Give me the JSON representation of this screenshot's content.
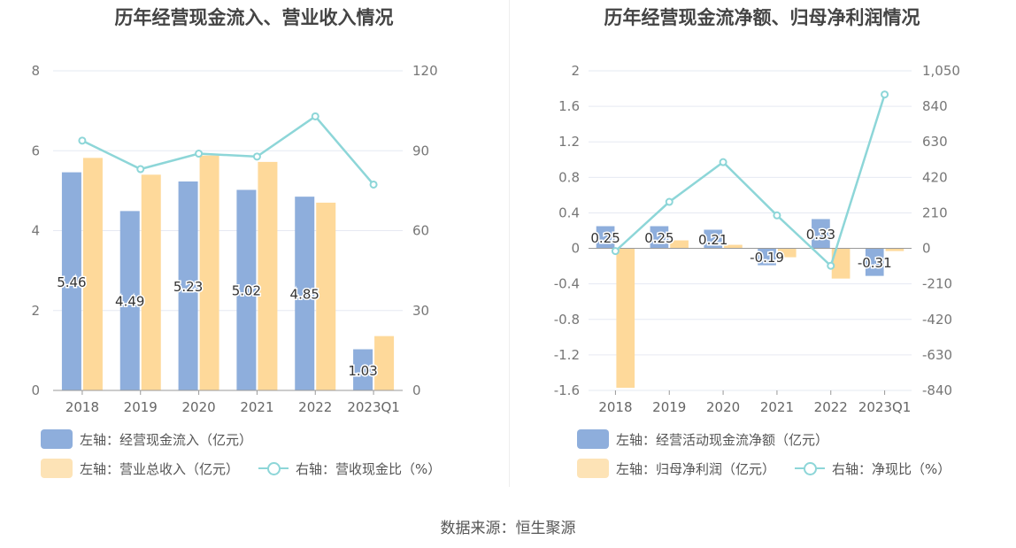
{
  "charts": [
    {
      "title": "历年经营现金流入、营业收入情况",
      "legend": {
        "bar1": "左轴：经营现金流入（亿元）",
        "bar2": "左轴：营业总收入（亿元）",
        "line": "右轴：营收现金比（%）"
      },
      "chart_data": {
        "type": "bar",
        "categories": [
          "2018",
          "2019",
          "2020",
          "2021",
          "2022",
          "2023Q1"
        ],
        "series": [
          {
            "name": "左轴：经营现金流入（亿元）",
            "axis": "left",
            "kind": "bar",
            "color": "#8eaedc",
            "values": [
              5.46,
              4.49,
              5.23,
              5.02,
              4.85,
              1.03
            ],
            "labels": [
              "5.46",
              "4.49",
              "5.23",
              "5.02",
              "4.85",
              "1.03"
            ]
          },
          {
            "name": "左轴：营业总收入（亿元）",
            "axis": "left",
            "kind": "bar",
            "color": "#fed99a",
            "values": [
              5.82,
              5.4,
              5.88,
              5.72,
              4.7,
              1.36
            ]
          },
          {
            "name": "右轴：营收现金比（%）",
            "axis": "right",
            "kind": "line",
            "color": "#8dd6d8",
            "values": [
              93.8,
              83.1,
              88.9,
              87.8,
              102.9,
              77.3
            ]
          }
        ],
        "left_axis": {
          "min": 0,
          "max": 8,
          "ticks": [
            "0",
            "2",
            "4",
            "6",
            "8"
          ]
        },
        "right_axis": {
          "min": 0,
          "max": 120,
          "ticks": [
            "0",
            "30",
            "60",
            "90",
            "120"
          ]
        }
      }
    },
    {
      "title": "历年经营现金流净额、归母净利润情况",
      "legend": {
        "bar1": "左轴：经营活动现金流净额（亿元）",
        "bar2": "左轴：归母净利润（亿元）",
        "line": "右轴：净现比（%）"
      },
      "chart_data": {
        "type": "bar",
        "categories": [
          "2018",
          "2019",
          "2020",
          "2021",
          "2022",
          "2023Q1"
        ],
        "series": [
          {
            "name": "左轴：经营活动现金流净额（亿元）",
            "axis": "left",
            "kind": "bar",
            "color": "#8eaedc",
            "values": [
              0.25,
              0.25,
              0.21,
              -0.19,
              0.33,
              -0.31
            ],
            "labels": [
              "0.25",
              "0.25",
              "0.21",
              "-0.19",
              "0.33",
              "-0.31"
            ]
          },
          {
            "name": "左轴：归母净利润（亿元）",
            "axis": "left",
            "kind": "bar",
            "color": "#fed99a",
            "values": [
              -1.57,
              0.09,
              0.04,
              -0.1,
              -0.34,
              -0.03
            ]
          },
          {
            "name": "右轴：净现比（%）",
            "axis": "right",
            "kind": "line",
            "color": "#8dd6d8",
            "values": [
              -16,
              275,
              510,
              195,
              -103,
              910
            ]
          }
        ],
        "left_axis": {
          "min": -1.6,
          "max": 2,
          "ticks": [
            "-1.6",
            "-1.2",
            "-0.8",
            "-0.4",
            "0",
            "0.4",
            "0.8",
            "1.2",
            "1.6",
            "2"
          ]
        },
        "right_axis": {
          "min": -840,
          "max": 1050,
          "ticks": [
            "-840",
            "-630",
            "-420",
            "-210",
            "0",
            "210",
            "420",
            "630",
            "840",
            "1,050"
          ]
        }
      }
    }
  ],
  "source": "数据来源：恒生聚源"
}
